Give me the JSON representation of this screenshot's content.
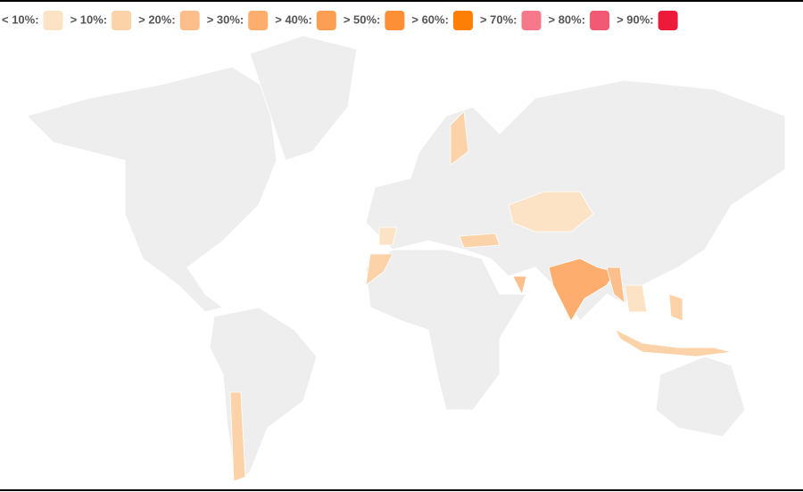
{
  "legend": {
    "items": [
      {
        "label": "< 10%:",
        "color": "#fde3c6"
      },
      {
        "label": "> 10%:",
        "color": "#fcd2a8"
      },
      {
        "label": "> 20%:",
        "color": "#fcbf8b"
      },
      {
        "label": "> 30%:",
        "color": "#fdae6e"
      },
      {
        "label": "> 40%:",
        "color": "#fd9f53"
      },
      {
        "label": "> 50%:",
        "color": "#fd8f36"
      },
      {
        "label": "> 60%:",
        "color": "#fd7f06"
      },
      {
        "label": "> 70%:",
        "color": "#f6788b"
      },
      {
        "label": "> 80%:",
        "color": "#f25a73"
      },
      {
        "label": "> 90%:",
        "color": "#ec1b3a"
      }
    ]
  }
}
